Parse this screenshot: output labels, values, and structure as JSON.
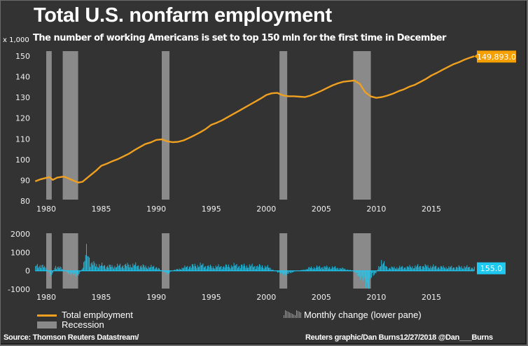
{
  "chart_data": [
    {
      "type": "line",
      "title": "Total U.S. nonfarm employment",
      "subtitle": "The number of working Americans is set to top 150 mln for the first time in December",
      "ylabel": "x 1,000",
      "ylim": [
        80,
        150
      ],
      "xlim": [
        1979,
        2018.9
      ],
      "yticks": [
        "150",
        "140",
        "130",
        "120",
        "110",
        "100",
        "90",
        "80"
      ],
      "ytick_values": [
        150,
        140,
        130,
        120,
        110,
        100,
        90,
        80
      ],
      "xticks": [
        "1980",
        "1985",
        "1990",
        "1995",
        "2000",
        "2005",
        "2010",
        "2015"
      ],
      "xtick_values": [
        1980,
        1985,
        1990,
        1995,
        2000,
        2005,
        2010,
        2015
      ],
      "series": [
        {
          "name": "Total employment",
          "color": "#f0a020",
          "x": [
            1979.0,
            1979.5,
            1980.0,
            1980.3,
            1980.6,
            1981.0,
            1981.6,
            1982.0,
            1982.5,
            1982.9,
            1983.3,
            1983.8,
            1984.5,
            1985.0,
            1985.5,
            1986.0,
            1986.5,
            1987.0,
            1987.5,
            1988.0,
            1988.5,
            1989.0,
            1989.5,
            1990.0,
            1990.5,
            1991.0,
            1991.5,
            1992.0,
            1992.5,
            1993.0,
            1993.5,
            1994.0,
            1994.5,
            1995.0,
            1995.5,
            1996.0,
            1996.5,
            1997.0,
            1997.5,
            1998.0,
            1998.5,
            1999.0,
            1999.5,
            2000.0,
            2000.5,
            2001.0,
            2001.5,
            2002.0,
            2002.5,
            2003.0,
            2003.5,
            2004.0,
            2004.5,
            2005.0,
            2005.5,
            2006.0,
            2006.5,
            2007.0,
            2007.5,
            2008.0,
            2008.5,
            2009.0,
            2009.5,
            2010.0,
            2010.5,
            2011.0,
            2011.5,
            2012.0,
            2012.5,
            2013.0,
            2013.5,
            2014.0,
            2014.5,
            2015.0,
            2015.5,
            2016.0,
            2016.5,
            2017.0,
            2017.5,
            2018.0,
            2018.5,
            2018.9
          ],
          "values": [
            89.5,
            90.5,
            91.2,
            91.5,
            90.2,
            91.3,
            91.8,
            91.0,
            89.8,
            88.9,
            89.3,
            91.5,
            94.5,
            97.0,
            98.0,
            99.2,
            100.2,
            101.5,
            102.8,
            104.5,
            106.0,
            107.5,
            108.3,
            109.5,
            109.8,
            108.8,
            108.4,
            108.6,
            109.3,
            110.5,
            111.8,
            113.2,
            114.8,
            116.8,
            117.8,
            119.0,
            120.5,
            122.0,
            123.5,
            125.0,
            126.5,
            128.0,
            129.5,
            131.2,
            132.0,
            132.2,
            131.0,
            130.6,
            130.6,
            130.4,
            130.2,
            130.9,
            132.0,
            133.2,
            134.5,
            135.8,
            136.8,
            137.6,
            137.9,
            138.2,
            136.5,
            132.5,
            130.5,
            129.8,
            130.2,
            130.9,
            131.8,
            133.0,
            133.9,
            135.2,
            136.1,
            137.5,
            138.9,
            140.6,
            141.9,
            143.3,
            144.7,
            146.0,
            147.0,
            148.2,
            149.2,
            149.893
          ]
        }
      ],
      "last_value_label": "149,893.0"
    },
    {
      "type": "bar",
      "ylim": [
        -1000,
        2000
      ],
      "xlim": [
        1979,
        2018.9
      ],
      "yticks": [
        "2000",
        "1000",
        "0",
        "-1000"
      ],
      "ytick_values": [
        2000,
        1000,
        0,
        -1000
      ],
      "xticks": [
        "1980",
        "1985",
        "1990",
        "1995",
        "2000",
        "2005",
        "2010",
        "2015"
      ],
      "xtick_values": [
        1980,
        1985,
        1990,
        1995,
        2000,
        2005,
        2010,
        2015
      ],
      "series": [
        {
          "name": "Monthly change (lower pane)",
          "color": "#1ec8f0",
          "x": [
            1979.0,
            1979.5,
            1980.0,
            1980.4,
            1980.8,
            1981.3,
            1981.8,
            1982.2,
            1982.6,
            1983.0,
            1983.4,
            1983.7,
            1984.0,
            1984.5,
            1985.0,
            1986.0,
            1987.0,
            1988.0,
            1989.0,
            1990.0,
            1990.6,
            1991.0,
            1991.5,
            1992.0,
            1993.0,
            1994.0,
            1995.0,
            1996.0,
            1997.0,
            1998.0,
            1999.0,
            2000.0,
            2000.6,
            2001.3,
            2001.9,
            2002.5,
            2003.0,
            2003.6,
            2004.0,
            2005.0,
            2006.0,
            2007.0,
            2007.8,
            2008.3,
            2008.8,
            2009.2,
            2009.6,
            2010.0,
            2010.4,
            2011.0,
            2012.0,
            2013.0,
            2014.0,
            2015.0,
            2016.0,
            2017.0,
            2018.0,
            2018.9
          ],
          "values": [
            250,
            300,
            120,
            -300,
            250,
            150,
            -50,
            -200,
            -250,
            -150,
            350,
            1150,
            400,
            320,
            280,
            230,
            290,
            300,
            220,
            200,
            -60,
            -150,
            30,
            90,
            250,
            300,
            210,
            230,
            280,
            260,
            250,
            230,
            50,
            -150,
            -180,
            -30,
            10,
            90,
            170,
            200,
            180,
            110,
            10,
            -200,
            -500,
            -750,
            -300,
            -50,
            500,
            150,
            180,
            200,
            250,
            230,
            190,
            180,
            210,
            155
          ]
        }
      ],
      "last_value_label": "155.0"
    }
  ],
  "recessions": [
    {
      "start": 1980.0,
      "end": 1980.5
    },
    {
      "start": 1981.5,
      "end": 1982.9
    },
    {
      "start": 1990.5,
      "end": 1991.2
    },
    {
      "start": 2001.2,
      "end": 2001.9
    },
    {
      "start": 2007.9,
      "end": 2009.5
    }
  ],
  "legend": {
    "total_employment": "Total employment",
    "recession": "Recession",
    "monthly_change": "Monthly change (lower pane)"
  },
  "footer": {
    "source": "Source: Thomson Reuters Datastream/",
    "credit": "Reuters graphic/Dan Burns12/27/2018 @Dan___Burns"
  },
  "colors": {
    "background": "#333333",
    "line": "#f0a020",
    "bars": "#1ec8f0",
    "recession": "#8a8a8a"
  }
}
